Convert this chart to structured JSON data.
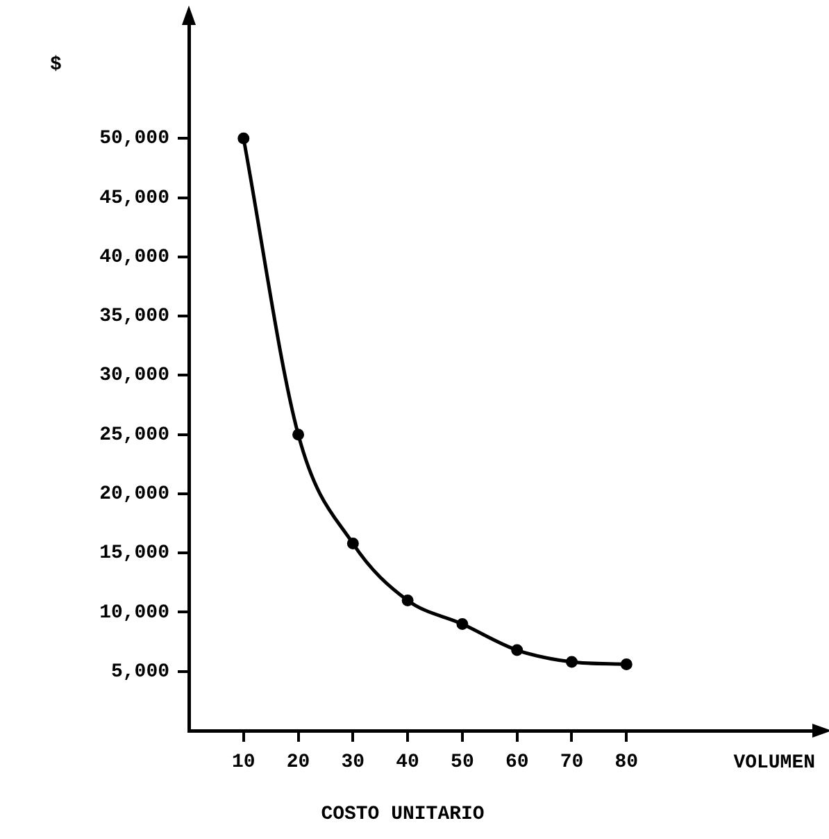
{
  "chart_data": {
    "type": "line",
    "xlabel": "VOLUMEN",
    "ylabel": "$",
    "annotations": [
      "COSTO UNITARIO"
    ],
    "x": [
      10,
      20,
      30,
      40,
      50,
      60,
      70,
      80
    ],
    "series": [
      {
        "color": "#000000",
        "values": [
          50000,
          25000,
          15800,
          11000,
          9000,
          6800,
          5800,
          5600
        ]
      }
    ],
    "xlim": [
      0,
      115
    ],
    "xticks": [
      10,
      20,
      30,
      40,
      50,
      60,
      70,
      80
    ],
    "ylim": [
      0,
      60000
    ],
    "yticks": [
      {
        "value": 5000,
        "label": "5,000"
      },
      {
        "value": 10000,
        "label": "10,000"
      },
      {
        "value": 15000,
        "label": "15,000"
      },
      {
        "value": 20000,
        "label": "20,000"
      },
      {
        "value": 25000,
        "label": "25,000"
      },
      {
        "value": 30000,
        "label": "30,000"
      },
      {
        "value": 35000,
        "label": "35,000"
      },
      {
        "value": 40000,
        "label": "40,000"
      },
      {
        "value": 45000,
        "label": "45,000"
      },
      {
        "value": 50000,
        "label": "50,000"
      }
    ],
    "grid": false,
    "legend": false,
    "marker": "circle",
    "line_style": "solid"
  }
}
